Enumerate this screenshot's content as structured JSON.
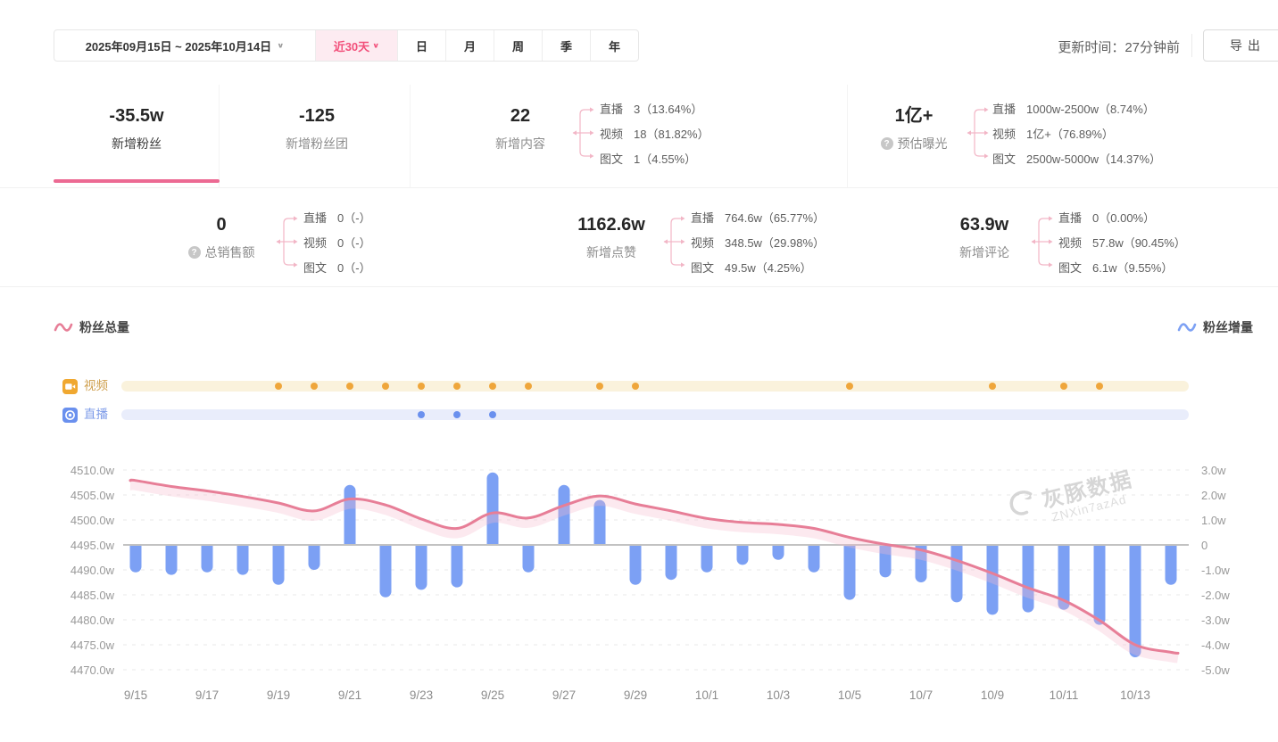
{
  "topbar": {
    "date_range": "2025年09月15日 ~ 2025年10月14日",
    "quick_range": "近30天",
    "chevron": "∨",
    "tabs": [
      "日",
      "月",
      "周",
      "季",
      "年"
    ],
    "update_time": "更新时间：27分钟前",
    "export_label": "导出"
  },
  "stats": {
    "row1": [
      {
        "value": "-35.5w",
        "label": "新增粉丝",
        "selected": true
      },
      {
        "value": "-125",
        "label": "新增粉丝团"
      },
      {
        "value": "22",
        "label": "新增内容",
        "breakdown": [
          {
            "name": "直播",
            "text": "3（13.64%）"
          },
          {
            "name": "视频",
            "text": "18（81.82%）"
          },
          {
            "name": "图文",
            "text": "1（4.55%）"
          }
        ]
      },
      {
        "value": "1亿+",
        "label": "预估曝光",
        "help": "?",
        "breakdown": [
          {
            "name": "直播",
            "text": "1000w-2500w（8.74%）"
          },
          {
            "name": "视频",
            "text": "1亿+（76.89%）"
          },
          {
            "name": "图文",
            "text": "2500w-5000w（14.37%）"
          }
        ]
      }
    ],
    "row2": [
      {
        "value": "0",
        "label": "总销售额",
        "help": "?",
        "breakdown": [
          {
            "name": "直播",
            "text": "0（-）"
          },
          {
            "name": "视频",
            "text": "0（-）"
          },
          {
            "name": "图文",
            "text": "0（-）"
          }
        ]
      },
      {
        "value": "1162.6w",
        "label": "新增点赞",
        "breakdown": [
          {
            "name": "直播",
            "text": "764.6w（65.77%）"
          },
          {
            "name": "视频",
            "text": "348.5w（29.98%）"
          },
          {
            "name": "图文",
            "text": "49.5w（4.25%）"
          }
        ]
      },
      {
        "value": "63.9w",
        "label": "新增评论",
        "breakdown": [
          {
            "name": "直播",
            "text": "0（0.00%）"
          },
          {
            "name": "视频",
            "text": "57.8w（90.45%）"
          },
          {
            "name": "图文",
            "text": "6.1w（9.55%）"
          }
        ]
      }
    ]
  },
  "legend": {
    "left": {
      "label": "粉丝总量",
      "color": "#E77E97"
    },
    "right": {
      "label": "粉丝增量",
      "color": "#7DA1F4"
    }
  },
  "timeline": {
    "video": {
      "label": "视频",
      "label_color": "#CfA04F",
      "dot_color": "#EFA63B",
      "track_color": "#FAF2DC",
      "day_indices": [
        4,
        5,
        6,
        7,
        8,
        9,
        10,
        11,
        13,
        14,
        20,
        24,
        26,
        27
      ]
    },
    "live": {
      "label": "直播",
      "label_color": "#7D9BE8",
      "dot_color": "#6A90EE",
      "track_color": "#E9EDFB",
      "day_indices": [
        8,
        9,
        10
      ]
    }
  },
  "watermark": {
    "brand": "灰豚数据",
    "code": "ZNXin7azAd"
  },
  "chart_data": {
    "type": "line+bar combo",
    "x": [
      "9/15",
      "9/16",
      "9/17",
      "9/18",
      "9/19",
      "9/20",
      "9/21",
      "9/22",
      "9/23",
      "9/24",
      "9/25",
      "9/26",
      "9/27",
      "9/28",
      "9/29",
      "9/30",
      "10/1",
      "10/2",
      "10/3",
      "10/4",
      "10/5",
      "10/6",
      "10/7",
      "10/8",
      "10/9",
      "10/10",
      "10/11",
      "10/12",
      "10/13",
      "10/14"
    ],
    "x_tick_labels": [
      "9/15",
      "9/17",
      "9/19",
      "9/21",
      "9/23",
      "9/25",
      "9/27",
      "9/29",
      "10/1",
      "10/3",
      "10/5",
      "10/7",
      "10/9",
      "10/11",
      "10/13"
    ],
    "series": [
      {
        "name": "粉丝总量",
        "type": "line",
        "axis": "left",
        "unit": "w",
        "color": "#E77E97",
        "values": [
          4507.9,
          4506.7,
          4505.8,
          4504.7,
          4503.4,
          4501.8,
          4504.2,
          4503.0,
          4500.2,
          4498.3,
          4501.4,
          4500.4,
          4502.9,
          4504.8,
          4503.2,
          4501.8,
          4500.3,
          4499.5,
          4499.1,
          4498.3,
          4496.5,
          4495.1,
          4494.0,
          4491.9,
          4489.3,
          4486.4,
          4483.9,
          4479.9,
          4475.0,
          4473.5
        ]
      },
      {
        "name": "粉丝增量",
        "type": "bar",
        "axis": "right",
        "unit": "w",
        "color": "#7CA0F4",
        "values": [
          -1.1,
          -1.2,
          -1.1,
          -1.2,
          -1.6,
          -1.0,
          2.4,
          -2.1,
          -1.8,
          -1.7,
          2.9,
          -1.1,
          2.4,
          1.8,
          -1.6,
          -1.4,
          -1.1,
          -0.8,
          -0.6,
          -1.1,
          -2.2,
          -1.3,
          -1.5,
          -2.3,
          -2.8,
          -2.7,
          -2.6,
          -3.2,
          -4.5,
          -1.6
        ]
      }
    ],
    "left_axis": {
      "tick_labels": [
        "4510.0w",
        "4505.0w",
        "4500.0w",
        "4495.0w",
        "4490.0w",
        "4485.0w",
        "4480.0w",
        "4475.0w",
        "4470.0w"
      ],
      "ylim": [
        4470,
        4510
      ]
    },
    "right_axis": {
      "tick_labels": [
        "3.0w",
        "2.0w",
        "1.0w",
        "0",
        "-1.0w",
        "-2.0w",
        "-3.0w",
        "-4.0w",
        "-5.0w"
      ],
      "ylim": [
        -5,
        3
      ]
    },
    "zero_line_left_value": 4495,
    "grid": true,
    "legend_position": "above-left / above-right"
  }
}
